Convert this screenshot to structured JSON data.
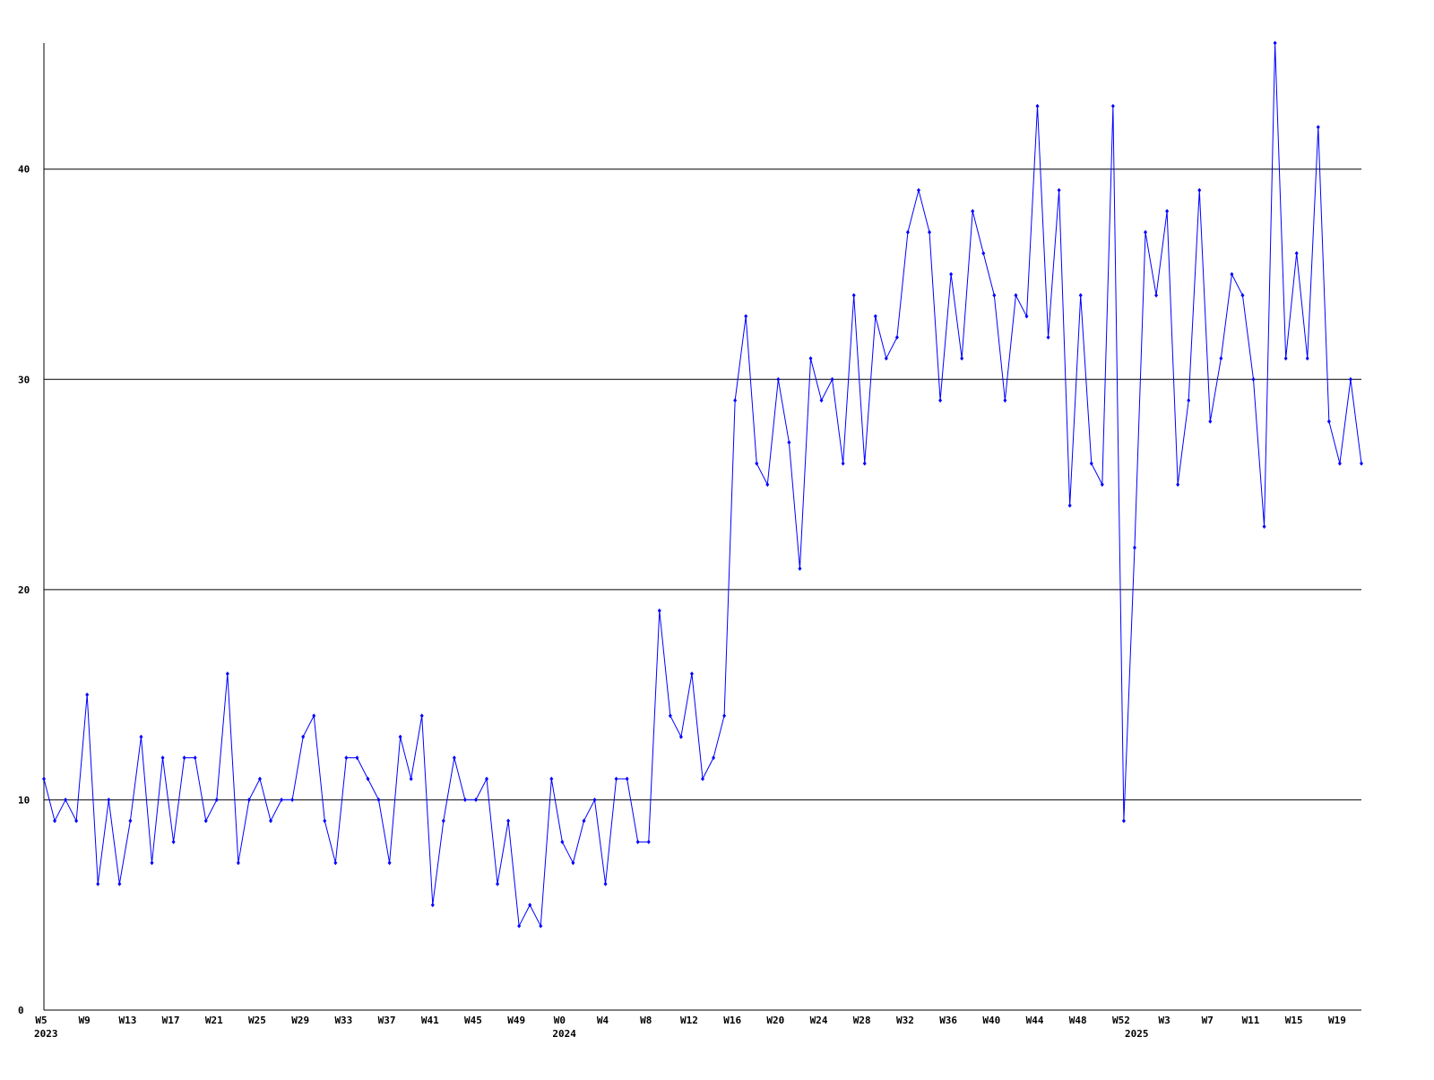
{
  "chart_data": {
    "type": "line",
    "categories": [
      "W5",
      null,
      null,
      null,
      "W9",
      null,
      null,
      null,
      "W13",
      null,
      null,
      null,
      "W17",
      null,
      null,
      null,
      "W21",
      null,
      null,
      null,
      "W25",
      null,
      null,
      null,
      "W29",
      null,
      null,
      null,
      "W33",
      null,
      null,
      null,
      "W37",
      null,
      null,
      null,
      "W41",
      null,
      null,
      null,
      "W45",
      null,
      null,
      null,
      "W49",
      null,
      null,
      null,
      "W0",
      null,
      null,
      null,
      "W4",
      null,
      null,
      null,
      "W8",
      null,
      null,
      null,
      "W12",
      null,
      null,
      null,
      "W16",
      null,
      null,
      null,
      "W20",
      null,
      null,
      null,
      "W24",
      null,
      null,
      null,
      "W28",
      null,
      null,
      null,
      "W32",
      null,
      null,
      null,
      "W36",
      null,
      null,
      null,
      "W40",
      null,
      null,
      null,
      "W44",
      null,
      null,
      null,
      "W48",
      null,
      null,
      null,
      "W52",
      null,
      null,
      null,
      "W3",
      null,
      null,
      null,
      "W7",
      null,
      null,
      null,
      "W11",
      null,
      null,
      null,
      "W15",
      null,
      null,
      null,
      "W19",
      null,
      null
    ],
    "years": [
      "2023",
      null,
      null,
      null,
      null,
      null,
      null,
      null,
      null,
      null,
      null,
      null,
      null,
      null,
      null,
      null,
      null,
      null,
      null,
      null,
      null,
      null,
      null,
      null,
      null,
      null,
      null,
      null,
      null,
      null,
      null,
      null,
      null,
      null,
      null,
      null,
      null,
      null,
      null,
      null,
      null,
      null,
      null,
      null,
      null,
      null,
      null,
      null,
      "2024",
      null,
      null,
      null,
      null,
      null,
      null,
      null,
      null,
      null,
      null,
      null,
      null,
      null,
      null,
      null,
      null,
      null,
      null,
      null,
      null,
      null,
      null,
      null,
      null,
      null,
      null,
      null,
      null,
      null,
      null,
      null,
      null,
      null,
      null,
      null,
      null,
      null,
      null,
      null,
      null,
      null,
      null,
      null,
      null,
      null,
      null,
      null,
      null,
      null,
      null,
      null,
      null,
      "2025",
      null,
      null,
      null,
      null,
      null,
      null,
      null,
      null,
      null,
      null,
      null,
      null,
      null,
      null,
      null,
      null,
      null,
      null,
      null,
      null,
      null
    ],
    "values": [
      11,
      9,
      10,
      9,
      15,
      6,
      10,
      6,
      9,
      13,
      7,
      12,
      8,
      12,
      12,
      9,
      10,
      16,
      7,
      10,
      11,
      9,
      10,
      10,
      13,
      14,
      9,
      7,
      12,
      12,
      11,
      10,
      7,
      13,
      11,
      14,
      5,
      9,
      12,
      10,
      10,
      11,
      6,
      9,
      4,
      5,
      4,
      11,
      8,
      7,
      9,
      10,
      6,
      11,
      11,
      8,
      8,
      19,
      14,
      13,
      16,
      11,
      12,
      14,
      29,
      33,
      26,
      25,
      30,
      27,
      21,
      31,
      29,
      30,
      26,
      34,
      26,
      33,
      31,
      32,
      37,
      39,
      37,
      29,
      35,
      31,
      38,
      36,
      34,
      29,
      34,
      33,
      43,
      32,
      39,
      24,
      34,
      26,
      25,
      43,
      9,
      22,
      37,
      34,
      38,
      25,
      29,
      39,
      28,
      31,
      35,
      34,
      30,
      23,
      46,
      31,
      36,
      31,
      42,
      28,
      26,
      30,
      26
    ],
    "color": "#0000ff",
    "ylim": [
      0,
      46
    ],
    "yticks": [
      0,
      10,
      20,
      30,
      40
    ],
    "grid": true
  }
}
